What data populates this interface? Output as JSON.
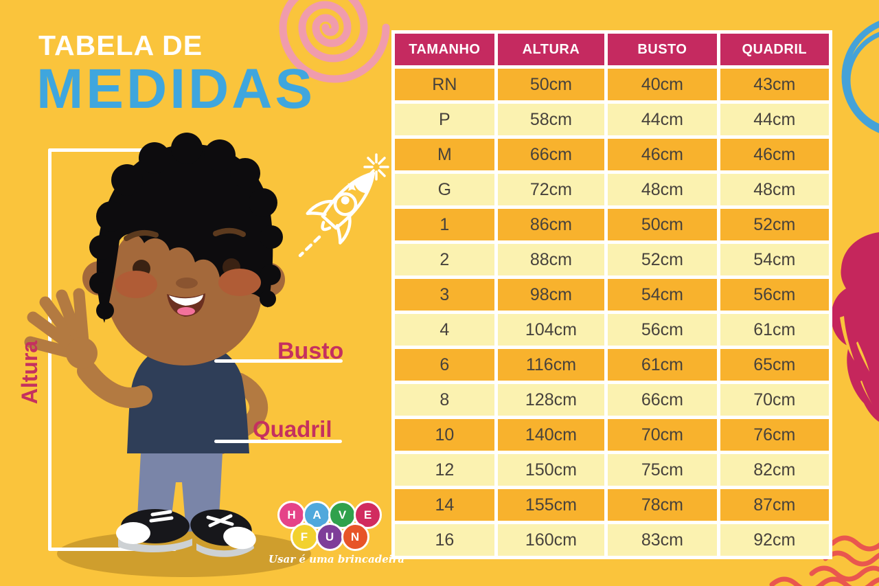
{
  "poster": {
    "background_color": "#FAC43C",
    "title": {
      "line1": "TABELA DE",
      "line2": "MEDIDAS",
      "line1_color": "#FFFFFF",
      "line2_color": "#3FA6DE"
    },
    "measure_labels": {
      "altura": "Altura",
      "busto": "Busto",
      "quadril": "Quadril",
      "color": "#C5305F"
    },
    "table": {
      "columns": [
        "TAMANHO",
        "ALTURA",
        "BUSTO",
        "QUADRIL"
      ],
      "rows": [
        [
          "RN",
          "50cm",
          "40cm",
          "43cm"
        ],
        [
          "P",
          "58cm",
          "44cm",
          "44cm"
        ],
        [
          "M",
          "66cm",
          "46cm",
          "46cm"
        ],
        [
          "G",
          "72cm",
          "48cm",
          "48cm"
        ],
        [
          "1",
          "86cm",
          "50cm",
          "52cm"
        ],
        [
          "2",
          "88cm",
          "52cm",
          "54cm"
        ],
        [
          "3",
          "98cm",
          "54cm",
          "56cm"
        ],
        [
          "4",
          "104cm",
          "56cm",
          "61cm"
        ],
        [
          "6",
          "116cm",
          "61cm",
          "65cm"
        ],
        [
          "8",
          "128cm",
          "66cm",
          "70cm"
        ],
        [
          "10",
          "140cm",
          "70cm",
          "76cm"
        ],
        [
          "12",
          "150cm",
          "75cm",
          "82cm"
        ],
        [
          "14",
          "155cm",
          "78cm",
          "87cm"
        ],
        [
          "16",
          "160cm",
          "83cm",
          "92cm"
        ]
      ],
      "colors": {
        "header_bg": "#C52A60",
        "header_text": "#FFFFFF",
        "row_dark": "#F8B22D",
        "row_light": "#FBF2B0",
        "cell_text": "#47423C",
        "grid": "#FFFFFF"
      }
    },
    "logo": {
      "balls": [
        {
          "letter": "H",
          "color": "#E54388"
        },
        {
          "letter": "A",
          "color": "#4FA8DC"
        },
        {
          "letter": "V",
          "color": "#2FA14C"
        },
        {
          "letter": "E",
          "color": "#D12B5F"
        },
        {
          "letter": "F",
          "color": "#F2D12E"
        },
        {
          "letter": "U",
          "color": "#7E3E99"
        },
        {
          "letter": "N",
          "color": "#E75428"
        }
      ],
      "tagline": "Usar é uma brincadeira"
    },
    "decor": {
      "pink_spiral_color": "#F09CAC",
      "blue_circle_color": "#45A2D8",
      "petal_color": "#C5265C",
      "waves_color": "#E9564F",
      "rocket_doodle_color": "#FFFFFF"
    }
  },
  "chart_data": {
    "type": "table",
    "title": "Tabela de Medidas",
    "columns": [
      "TAMANHO",
      "ALTURA",
      "BUSTO",
      "QUADRIL"
    ],
    "rows": [
      [
        "RN",
        "50cm",
        "40cm",
        "43cm"
      ],
      [
        "P",
        "58cm",
        "44cm",
        "44cm"
      ],
      [
        "M",
        "66cm",
        "46cm",
        "46cm"
      ],
      [
        "G",
        "72cm",
        "48cm",
        "48cm"
      ],
      [
        "1",
        "86cm",
        "50cm",
        "52cm"
      ],
      [
        "2",
        "88cm",
        "52cm",
        "54cm"
      ],
      [
        "3",
        "98cm",
        "54cm",
        "56cm"
      ],
      [
        "4",
        "104cm",
        "56cm",
        "61cm"
      ],
      [
        "6",
        "116cm",
        "61cm",
        "65cm"
      ],
      [
        "8",
        "128cm",
        "66cm",
        "70cm"
      ],
      [
        "10",
        "140cm",
        "70cm",
        "76cm"
      ],
      [
        "12",
        "150cm",
        "75cm",
        "82cm"
      ],
      [
        "14",
        "155cm",
        "78cm",
        "87cm"
      ],
      [
        "16",
        "160cm",
        "83cm",
        "92cm"
      ]
    ]
  }
}
